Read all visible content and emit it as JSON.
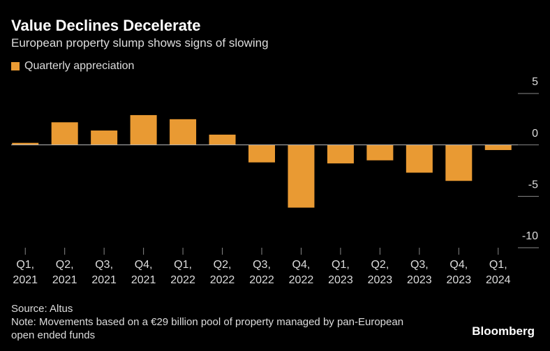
{
  "chart_data": {
    "type": "bar",
    "title": "Value Declines Decelerate",
    "subtitle": "European property slump shows signs of slowing",
    "categories": [
      "Q1, 2021",
      "Q2, 2021",
      "Q3, 2021",
      "Q4, 2021",
      "Q1, 2022",
      "Q2, 2022",
      "Q3, 2022",
      "Q4, 2022",
      "Q1, 2023",
      "Q2, 2023",
      "Q3, 2023",
      "Q4, 2023",
      "Q1, 2024"
    ],
    "series": [
      {
        "name": "Quarterly appreciation",
        "color": "#e99a33",
        "values": [
          0.2,
          2.2,
          1.4,
          2.9,
          2.5,
          1.0,
          -1.7,
          -6.1,
          -1.8,
          -1.5,
          -2.7,
          -3.5,
          -0.5
        ]
      }
    ],
    "ylim": [
      -10,
      5
    ],
    "yticks": [
      5,
      0,
      -5,
      -10
    ],
    "source": "Source: Altus",
    "note": "Note: Movements based on a €29 billion pool of property managed by pan-European open ended funds",
    "brand": "Bloomberg"
  }
}
